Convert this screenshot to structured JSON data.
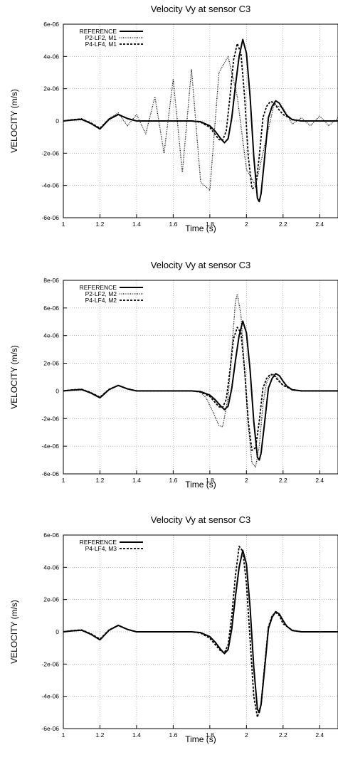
{
  "chart_data": [
    {
      "type": "line",
      "title": "Velocity Vy at sensor C3",
      "xlabel": "Time (s)",
      "ylabel": "VELOCITY (m/s)",
      "xlim": [
        1,
        2.5
      ],
      "ylim": [
        -6e-06,
        6e-06
      ],
      "x_ticks": [
        "1",
        "1.2",
        "1.4",
        "1.6",
        "1.8",
        "2",
        "2.2",
        "2.4"
      ],
      "y_ticks": [
        "-6e-06",
        "-4e-06",
        "-2e-06",
        "0",
        "2e-06",
        "4e-06",
        "6e-06"
      ],
      "grid": true,
      "legend_position": "top-left",
      "series": [
        {
          "name": "REFERENCE",
          "style": "solid",
          "x": [
            1.0,
            1.05,
            1.1,
            1.15,
            1.2,
            1.25,
            1.3,
            1.35,
            1.4,
            1.5,
            1.6,
            1.7,
            1.75,
            1.8,
            1.83,
            1.86,
            1.88,
            1.9,
            1.92,
            1.94,
            1.96,
            1.98,
            2.0,
            2.02,
            2.04,
            2.06,
            2.07,
            2.08,
            2.1,
            2.12,
            2.14,
            2.16,
            2.18,
            2.2,
            2.22,
            2.25,
            2.3,
            2.35,
            2.4,
            2.5
          ],
          "y": [
            0,
            6e-08,
            1e-07,
            -1.5e-07,
            -5e-07,
            1e-07,
            4e-07,
            1.5e-07,
            0,
            0,
            0,
            0,
            -5e-08,
            -3e-07,
            -6.5e-07,
            -1.1e-06,
            -1.35e-06,
            -1.1e-06,
            2e-07,
            2.2e-06,
            4e-06,
            5.05e-06,
            4.2e-06,
            1.5e-06,
            -2.2e-06,
            -4.8e-06,
            -5e-06,
            -4.5e-06,
            -2.2e-06,
            2e-07,
            9e-07,
            1.25e-06,
            1.1e-06,
            7e-07,
            3.5e-07,
            8e-08,
            0,
            0,
            0,
            0
          ]
        },
        {
          "name": "P2-LF2, M1",
          "style": "dotted",
          "x": [
            1.0,
            1.05,
            1.1,
            1.15,
            1.2,
            1.25,
            1.3,
            1.35,
            1.4,
            1.45,
            1.5,
            1.55,
            1.6,
            1.65,
            1.7,
            1.75,
            1.8,
            1.85,
            1.9,
            1.95,
            2.0,
            2.05,
            2.1,
            2.15,
            2.2,
            2.25,
            2.3,
            2.35,
            2.4,
            2.45,
            2.5
          ],
          "y": [
            0,
            8e-08,
            1.5e-07,
            -1.5e-07,
            -5e-07,
            1.5e-07,
            5e-07,
            -3e-07,
            4e-07,
            -8e-07,
            1.5e-06,
            -2e-06,
            2.6e-06,
            -3.2e-06,
            3.2e-06,
            -3.8e-06,
            -4.3e-06,
            3e-06,
            4e-06,
            1.5e-06,
            -3e-06,
            -4e-06,
            -1.5e-06,
            1e-06,
            8e-07,
            -2e-07,
            2e-07,
            -3e-07,
            3e-07,
            -3e-07,
            2e-07
          ]
        },
        {
          "name": "P4-LF4, M1",
          "style": "dashed",
          "x": [
            1.0,
            1.05,
            1.1,
            1.15,
            1.2,
            1.25,
            1.3,
            1.35,
            1.4,
            1.5,
            1.6,
            1.7,
            1.75,
            1.8,
            1.82,
            1.85,
            1.87,
            1.89,
            1.91,
            1.93,
            1.95,
            1.97,
            1.99,
            2.01,
            2.03,
            2.05,
            2.07,
            2.09,
            2.11,
            2.13,
            2.15,
            2.17,
            2.2,
            2.25,
            2.3,
            2.4,
            2.5
          ],
          "y": [
            0,
            8e-08,
            1.2e-07,
            -1.2e-07,
            -4.5e-07,
            1.2e-07,
            4e-07,
            1.5e-07,
            0,
            0,
            0,
            0,
            -8e-08,
            -4e-07,
            -7e-07,
            -1.15e-06,
            -1.2e-06,
            -6e-07,
            1.5e-06,
            3.8e-06,
            4.8e-06,
            4.2e-06,
            1.5e-06,
            -2.2e-06,
            -4.2e-06,
            -4.1e-06,
            -2.2e-06,
            2e-07,
            9e-07,
            1.2e-06,
            1.15e-06,
            8e-07,
            4e-07,
            1e-07,
            0,
            0,
            0
          ]
        }
      ]
    },
    {
      "type": "line",
      "title": "Velocity Vy at sensor C3",
      "xlabel": "Time (s)",
      "ylabel": "VELOCITY (m/s)",
      "xlim": [
        1,
        2.5
      ],
      "ylim": [
        -6e-06,
        8e-06
      ],
      "x_ticks": [
        "1",
        "1.2",
        "1.4",
        "1.6",
        "1.8",
        "2",
        "2.2",
        "2.4"
      ],
      "y_ticks": [
        "-6e-06",
        "-4e-06",
        "-2e-06",
        "0",
        "2e-06",
        "4e-06",
        "6e-06",
        "8e-06"
      ],
      "grid": true,
      "legend_position": "top-left",
      "series": [
        {
          "name": "REFERENCE",
          "style": "solid",
          "x": [
            1.0,
            1.05,
            1.1,
            1.15,
            1.2,
            1.25,
            1.3,
            1.35,
            1.4,
            1.5,
            1.6,
            1.7,
            1.75,
            1.8,
            1.83,
            1.86,
            1.88,
            1.9,
            1.92,
            1.94,
            1.96,
            1.98,
            2.0,
            2.02,
            2.04,
            2.06,
            2.07,
            2.08,
            2.1,
            2.12,
            2.14,
            2.16,
            2.18,
            2.2,
            2.22,
            2.25,
            2.3,
            2.35,
            2.4,
            2.5
          ],
          "y": [
            0,
            6e-08,
            1e-07,
            -1.5e-07,
            -5e-07,
            1e-07,
            4e-07,
            1.5e-07,
            0,
            0,
            0,
            0,
            -5e-08,
            -3e-07,
            -6.5e-07,
            -1.1e-06,
            -1.35e-06,
            -1.1e-06,
            2e-07,
            2.2e-06,
            4e-06,
            5.05e-06,
            4.2e-06,
            1.5e-06,
            -2.2e-06,
            -4.8e-06,
            -5e-06,
            -4.5e-06,
            -2.2e-06,
            2e-07,
            9e-07,
            1.25e-06,
            1.1e-06,
            7e-07,
            3.5e-07,
            8e-08,
            0,
            0,
            0,
            0
          ]
        },
        {
          "name": "P2-LF2, M2",
          "style": "dotted",
          "x": [
            1.0,
            1.05,
            1.1,
            1.15,
            1.2,
            1.25,
            1.3,
            1.35,
            1.4,
            1.5,
            1.6,
            1.7,
            1.75,
            1.78,
            1.82,
            1.85,
            1.87,
            1.9,
            1.92,
            1.94,
            1.95,
            1.97,
            1.99,
            2.01,
            2.03,
            2.05,
            2.07,
            2.09,
            2.11,
            2.13,
            2.15,
            2.17,
            2.2,
            2.25,
            2.3,
            2.4,
            2.5
          ],
          "y": [
            0,
            8e-08,
            1.2e-07,
            -1.2e-07,
            -4.5e-07,
            1.2e-07,
            4e-07,
            1.5e-07,
            0,
            0,
            0,
            0,
            -1e-07,
            -5e-07,
            -1.6e-06,
            -2.5e-06,
            -2.6e-06,
            -5e-07,
            3e-06,
            6.5e-06,
            7e-06,
            5.5e-06,
            1.5e-06,
            -2.5e-06,
            -5.2e-06,
            -5.5e-06,
            -4e-06,
            -1e-06,
            6e-07,
            1.1e-06,
            1.2e-06,
            9e-07,
            4e-07,
            1e-07,
            0,
            0,
            0
          ]
        },
        {
          "name": "P4-LF4, M2",
          "style": "dashed",
          "x": [
            1.0,
            1.05,
            1.1,
            1.15,
            1.2,
            1.25,
            1.3,
            1.35,
            1.4,
            1.5,
            1.6,
            1.7,
            1.75,
            1.8,
            1.82,
            1.85,
            1.87,
            1.89,
            1.91,
            1.93,
            1.95,
            1.97,
            1.99,
            2.01,
            2.03,
            2.05,
            2.07,
            2.09,
            2.11,
            2.13,
            2.15,
            2.17,
            2.2,
            2.25,
            2.3,
            2.4,
            2.5
          ],
          "y": [
            0,
            8e-08,
            1.2e-07,
            -1.2e-07,
            -4.5e-07,
            1.2e-07,
            4e-07,
            1.5e-07,
            0,
            0,
            0,
            0,
            -8e-08,
            -4e-07,
            -7e-07,
            -1.15e-06,
            -1.2e-06,
            -6e-07,
            1.5e-06,
            3.8e-06,
            4.6e-06,
            4.2e-06,
            1.5e-06,
            -2.2e-06,
            -4.3e-06,
            -4.1e-06,
            -2.2e-06,
            2e-07,
            9e-07,
            1.2e-06,
            1.15e-06,
            8e-07,
            4e-07,
            1e-07,
            0,
            0,
            0
          ]
        }
      ]
    },
    {
      "type": "line",
      "title": "Velocity Vy at sensor C3",
      "xlabel": "Time (s)",
      "ylabel": "VELOCITY (m/s)",
      "xlim": [
        1,
        2.5
      ],
      "ylim": [
        -6e-06,
        6e-06
      ],
      "x_ticks": [
        "1",
        "1.2",
        "1.4",
        "1.6",
        "1.8",
        "2",
        "2.2",
        "2.4"
      ],
      "y_ticks": [
        "-6e-06",
        "-4e-06",
        "-2e-06",
        "0",
        "2e-06",
        "4e-06",
        "6e-06"
      ],
      "grid": true,
      "legend_position": "top-left",
      "series": [
        {
          "name": "REFERENCE",
          "style": "solid",
          "x": [
            1.0,
            1.05,
            1.1,
            1.15,
            1.2,
            1.25,
            1.3,
            1.35,
            1.4,
            1.5,
            1.6,
            1.7,
            1.75,
            1.8,
            1.83,
            1.86,
            1.88,
            1.9,
            1.92,
            1.94,
            1.96,
            1.98,
            2.0,
            2.02,
            2.04,
            2.06,
            2.07,
            2.08,
            2.1,
            2.12,
            2.14,
            2.16,
            2.18,
            2.2,
            2.22,
            2.25,
            2.3,
            2.35,
            2.4,
            2.5
          ],
          "y": [
            0,
            6e-08,
            1e-07,
            -1.5e-07,
            -5e-07,
            1e-07,
            4e-07,
            1.5e-07,
            0,
            0,
            0,
            0,
            -5e-08,
            -3e-07,
            -6.5e-07,
            -1.1e-06,
            -1.35e-06,
            -1.1e-06,
            2e-07,
            2.2e-06,
            4e-06,
            5.05e-06,
            4.2e-06,
            1.5e-06,
            -2.2e-06,
            -4.8e-06,
            -5e-06,
            -4.5e-06,
            -2.2e-06,
            2e-07,
            9e-07,
            1.25e-06,
            1.1e-06,
            7e-07,
            3.5e-07,
            8e-08,
            0,
            0,
            0,
            0
          ]
        },
        {
          "name": "P4-LF4, M3",
          "style": "dashed",
          "x": [
            1.0,
            1.05,
            1.1,
            1.15,
            1.2,
            1.25,
            1.3,
            1.35,
            1.4,
            1.5,
            1.6,
            1.7,
            1.75,
            1.8,
            1.83,
            1.86,
            1.88,
            1.9,
            1.92,
            1.94,
            1.96,
            1.98,
            2.0,
            2.02,
            2.04,
            2.06,
            2.08,
            2.1,
            2.12,
            2.14,
            2.16,
            2.18,
            2.2,
            2.25,
            2.3,
            2.4,
            2.5
          ],
          "y": [
            0,
            8e-08,
            1.2e-07,
            -1.2e-07,
            -4.5e-07,
            1.2e-07,
            4e-07,
            1.5e-07,
            0,
            0,
            0,
            0,
            -8e-08,
            -4e-07,
            -8e-07,
            -1.2e-06,
            -1.3e-06,
            -8e-07,
            1e-06,
            3.5e-06,
            5.3e-06,
            5e-06,
            3e-06,
            -5e-07,
            -4e-06,
            -5.3e-06,
            -4.5e-06,
            -2e-06,
            3e-07,
            1e-06,
            1.2e-06,
            1e-06,
            5e-07,
            1e-07,
            0,
            0,
            0
          ]
        }
      ]
    }
  ]
}
